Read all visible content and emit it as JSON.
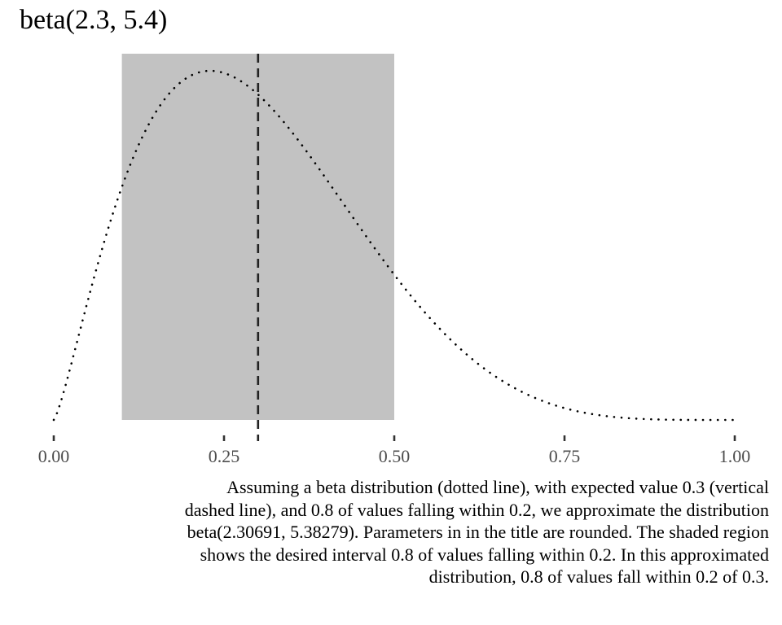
{
  "chart_data": {
    "type": "line",
    "title": "beta(2.3, 5.4)",
    "distribution": {
      "family": "beta",
      "alpha": 2.30691,
      "beta": 5.38279
    },
    "xlim": [
      0,
      1
    ],
    "x_ticks": [
      0,
      0.25,
      0.5,
      0.75,
      1.0
    ],
    "x_tick_labels": [
      "0.00",
      "0.25",
      "0.50",
      "0.75",
      "1.00"
    ],
    "expected_value": 0.3,
    "shaded_interval": [
      0.1,
      0.5
    ],
    "series": [
      {
        "line_style": "dotted",
        "color": "#000000"
      }
    ],
    "reference_line": {
      "x": 0.3,
      "line_style": "dashed",
      "color": "#222222"
    },
    "shade_color": "#c2c2c2",
    "caption": "Assuming a beta distribution (dotted line), with expected value 0.3 (vertical dashed line), and 0.8 of values falling within 0.2, we approximate the distribution beta(2.30691, 5.38279). Parameters in in the title are rounded. The shaded region shows the desired interval 0.8 of values falling within 0.2. In this approximated distribution, 0.8 of values fall within 0.2 of 0.3."
  }
}
